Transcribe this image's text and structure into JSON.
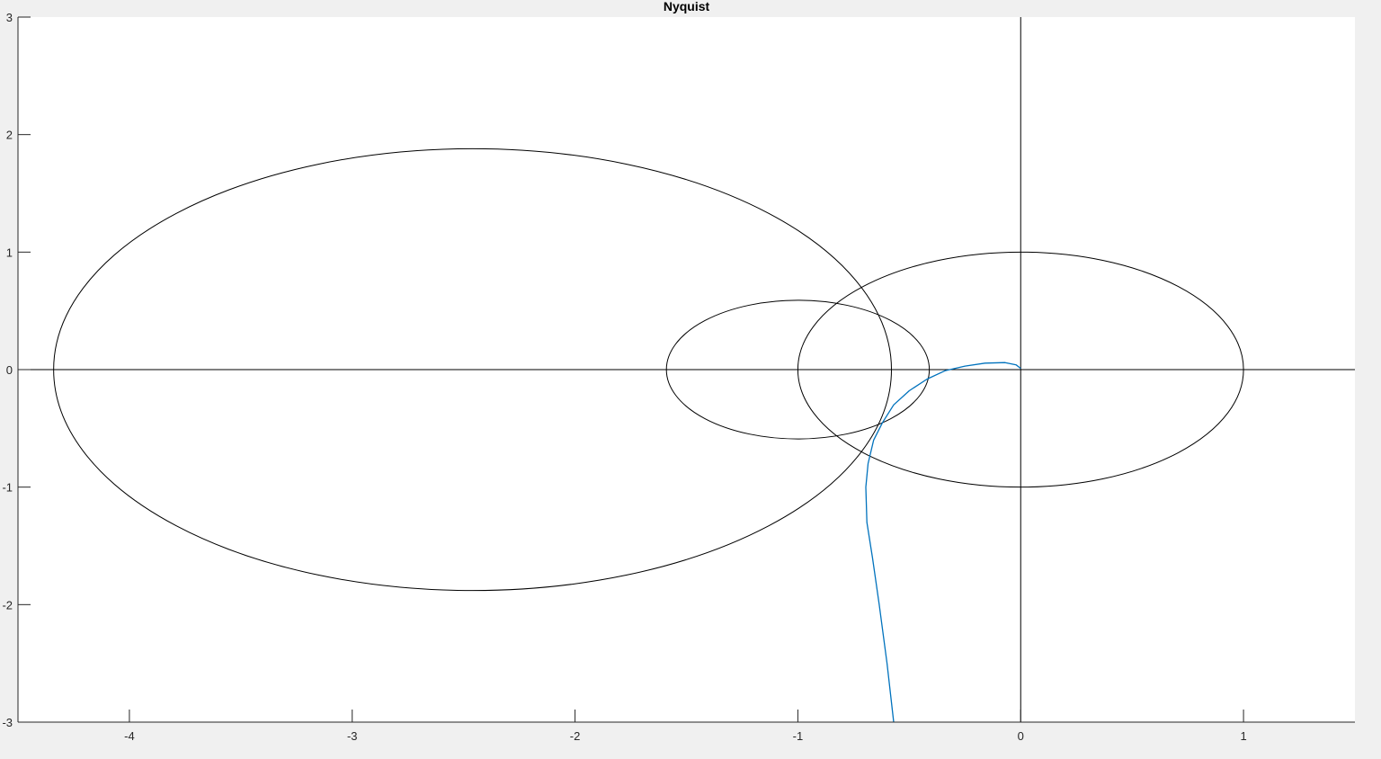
{
  "chart_data": {
    "type": "line",
    "title": "Nyquist",
    "xlabel": "",
    "ylabel": "",
    "xlim": [
      -4.5,
      1.5
    ],
    "ylim": [
      -3,
      3
    ],
    "x_ticks": [
      -4,
      -3,
      -2,
      -1,
      0,
      1
    ],
    "y_ticks": [
      -3,
      -2,
      -1,
      0,
      1,
      2,
      3
    ],
    "x_tick_labels": [
      "-4",
      "-3",
      "-2",
      "-1",
      "0",
      "1"
    ],
    "y_tick_labels": [
      "-3",
      "-2",
      "-1",
      "0",
      "1",
      "2",
      "3"
    ],
    "grid": false,
    "axis_lines": [
      {
        "orientation": "horizontal",
        "value": 0
      },
      {
        "orientation": "vertical",
        "value": 0
      }
    ],
    "reference_circles": [
      {
        "cx": 0,
        "cy": 0,
        "r": 1
      },
      {
        "cx": -1,
        "cy": 0,
        "r": 0.59
      },
      {
        "cx": -2.46,
        "cy": 0,
        "r": 1.88
      }
    ],
    "series": [
      {
        "color": "#0072bd",
        "x": [
          -0.57,
          -0.6,
          -0.635,
          -0.665,
          -0.69,
          -0.695,
          -0.685,
          -0.66,
          -0.62,
          -0.57,
          -0.5,
          -0.42,
          -0.34,
          -0.25,
          -0.16,
          -0.07,
          -0.02,
          0.0
        ],
        "y": [
          -3.0,
          -2.5,
          -2.0,
          -1.6,
          -1.3,
          -1.0,
          -0.8,
          -0.6,
          -0.45,
          -0.3,
          -0.18,
          -0.08,
          -0.01,
          0.03,
          0.055,
          0.06,
          0.04,
          0.01
        ]
      }
    ]
  }
}
